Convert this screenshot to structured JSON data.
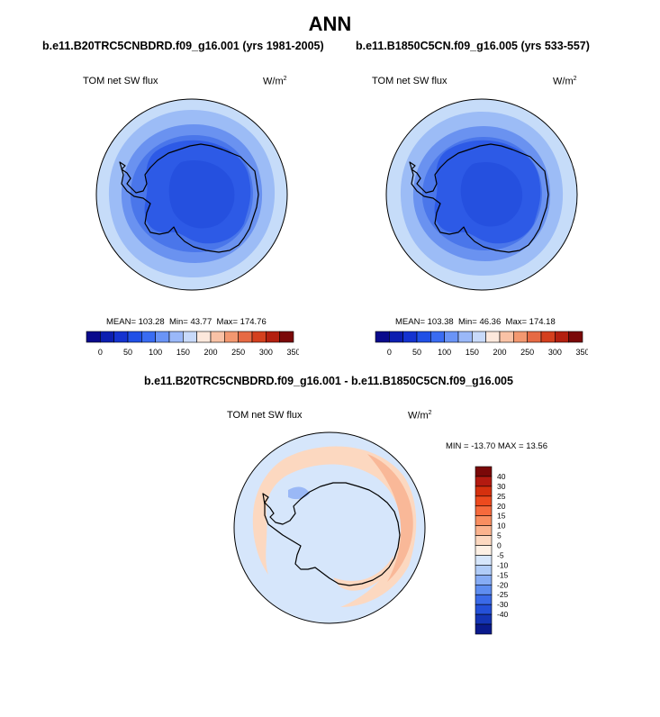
{
  "figure": {
    "title": "ANN"
  },
  "panels": [
    {
      "case_title": "b.e11.B20TRC5CNBDRD.f09_g16.001 (yrs 1981-2005)",
      "variable": "TOM net SW flux",
      "units_base": "W/m",
      "units_exp": "2",
      "mean_label": "MEAN= 103.28",
      "min_label": "Min=  43.77",
      "max_label": "Max= 174.76"
    },
    {
      "case_title": "b.e11.B1850C5CN.f09_g16.005 (yrs 533-557)",
      "variable": "TOM net SW flux",
      "units_base": "W/m",
      "units_exp": "2",
      "mean_label": "MEAN= 103.38",
      "min_label": "Min=  46.36",
      "max_label": "Max= 174.18"
    }
  ],
  "diff_panel": {
    "case_title": "b.e11.B20TRC5CNBDRD.f09_g16.001 - b.e11.B1850C5CN.f09_g16.005",
    "variable": "TOM net SW flux",
    "units_base": "W/m",
    "units_exp": "2",
    "minmax_label": "MIN = -13.70 MAX =  13.56"
  },
  "colorbar_abs": {
    "colors": [
      "#0a0a8c",
      "#0c1eb0",
      "#1533d0",
      "#2050e6",
      "#3a6cf2",
      "#6a94f6",
      "#9ab8f8",
      "#c8dafa",
      "#fde8dc",
      "#f9c2a6",
      "#f39870",
      "#e66a44",
      "#d4401e",
      "#b32010",
      "#7a0808"
    ],
    "labels": [
      "0",
      "50",
      "100",
      "150",
      "200",
      "250",
      "300",
      "350"
    ]
  },
  "colorbar_diff": {
    "colors": [
      "#7a0808",
      "#b31a10",
      "#d5300e",
      "#ed4a1e",
      "#f66a3c",
      "#f98e60",
      "#fbb38e",
      "#fcd8c0",
      "#fdf0e4",
      "#d6e6fb",
      "#b0ccf8",
      "#86acf5",
      "#5e8df0",
      "#3a6ae8",
      "#2450d8",
      "#1434b4",
      "#0a1a8c"
    ],
    "labels": [
      "40",
      "30",
      "25",
      "20",
      "15",
      "10",
      "5",
      "0",
      "-5",
      "-10",
      "-15",
      "-20",
      "-25",
      "-30",
      "-40"
    ]
  },
  "map_colors": {
    "ocean_far": "#c6dcf9",
    "ocean_mid": "#9cbcf6",
    "ocean_near": "#6a92f0",
    "shelf": "#4a76ea",
    "ice": "#2d5ae6",
    "interior": "#2550df",
    "diff_neg": "#d6e6fb",
    "diff_pos": "#fcd8c0",
    "diff_pos_strong": "#f9b898",
    "diff_neg_strong": "#9ab8f6",
    "coast": "#000000"
  }
}
